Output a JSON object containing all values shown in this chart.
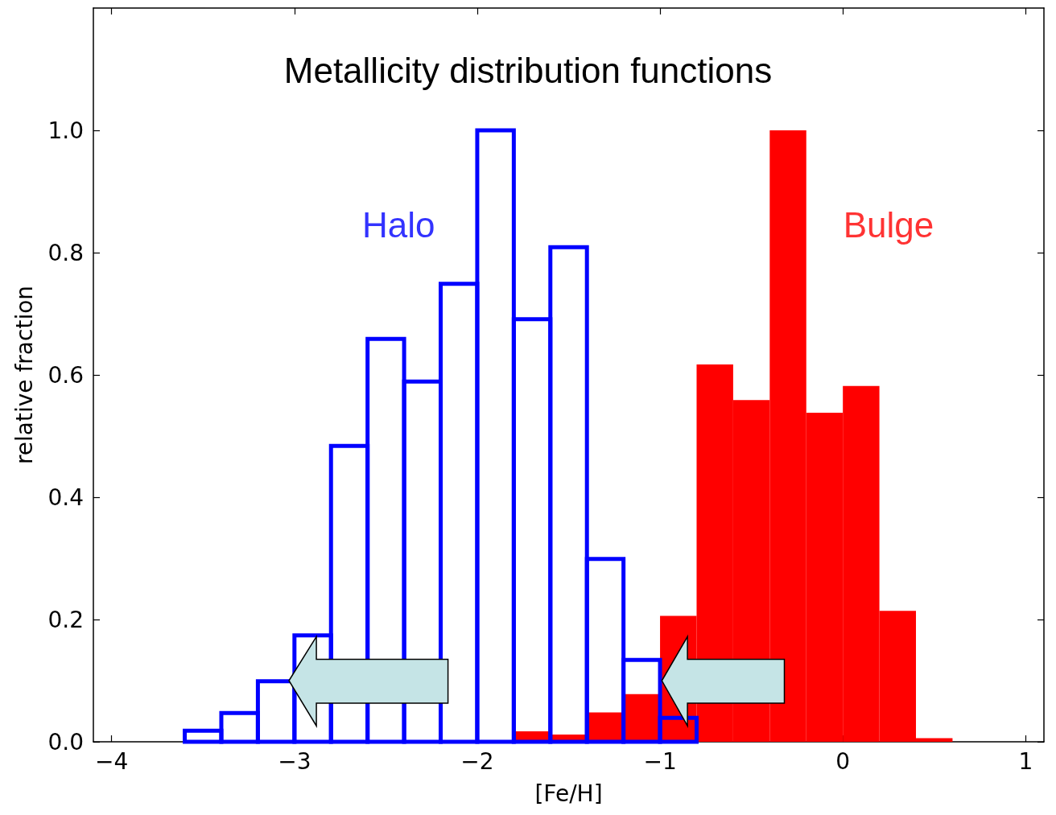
{
  "chart_data": {
    "type": "histogram",
    "title": "Metallicity distribution functions",
    "xlabel": "[Fe/H]",
    "ylabel": "relative fraction",
    "bins": [
      -3.6,
      -3.4,
      -3.2,
      -3.0,
      -2.8,
      -2.6,
      -2.4,
      -2.2,
      -2.0,
      -1.8,
      -1.6,
      -1.4,
      -1.2,
      -1.0,
      -0.8,
      -0.6,
      -0.4,
      -0.2,
      0.0,
      0.2,
      0.4,
      0.6
    ],
    "series": [
      {
        "name": "Bulge",
        "color": "#ff0000",
        "values": [
          null,
          null,
          null,
          null,
          null,
          null,
          null,
          null,
          null,
          0.017,
          0.012,
          0.048,
          0.078,
          0.206,
          0.617,
          0.559,
          1.0,
          0.538,
          0.582,
          0.214,
          0.006
        ]
      },
      {
        "name": "Halo",
        "color": "#0000ff",
        "values": [
          0.018,
          0.047,
          0.099,
          0.174,
          0.484,
          0.659,
          0.589,
          0.749,
          1.0,
          0.691,
          0.809,
          0.299,
          0.134,
          0.039,
          null,
          null,
          null,
          null,
          null,
          null,
          null
        ]
      }
    ],
    "xlim": [
      -4.1,
      1.1
    ],
    "xticks": [
      {
        "value": -4,
        "label": "−4"
      },
      {
        "value": -3,
        "label": "−3"
      },
      {
        "value": -2,
        "label": "−2"
      },
      {
        "value": -1,
        "label": "−1"
      },
      0,
      1
    ],
    "ylim": [
      0,
      1.2
    ],
    "yticks": [
      {
        "value": 0,
        "label": "0.0"
      },
      {
        "value": 0.2,
        "label": "0.2"
      },
      {
        "value": 0.4,
        "label": "0.4"
      },
      {
        "value": 0.6,
        "label": "0.6"
      },
      {
        "value": 0.8,
        "label": "0.8"
      },
      {
        "value": 1.0,
        "label": "1.0"
      }
    ],
    "grid": false
  }
}
